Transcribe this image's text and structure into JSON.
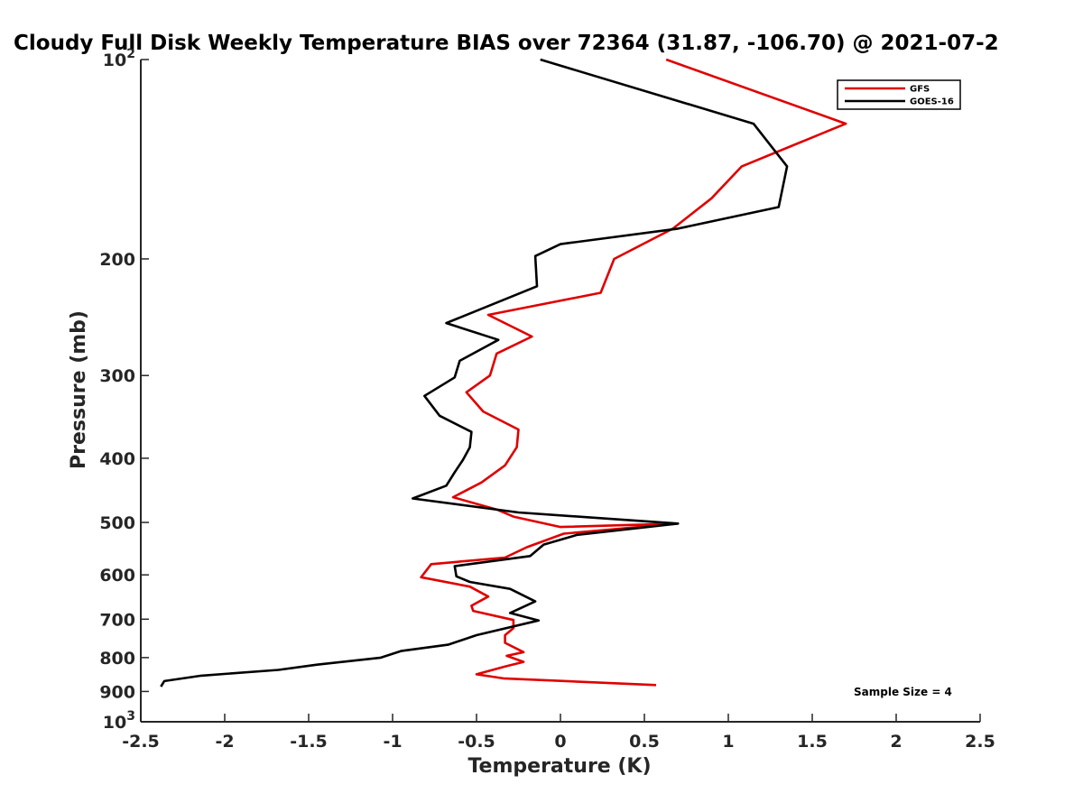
{
  "chart_data": {
    "type": "line",
    "title": "Cloudy Full Disk Weekly Temperature BIAS over 72364 (31.87, -106.70) @ 2021-07-2",
    "xlabel": "Temperature (K)",
    "ylabel": "Pressure (mb)",
    "xlim": [
      -2.5,
      2.5
    ],
    "ylim": [
      100,
      1000
    ],
    "yscale": "log",
    "y_reversed": true,
    "x_ticks": [
      "-2.5",
      "-2",
      "-1.5",
      "-1",
      "-0.5",
      "0",
      "0.5",
      "1",
      "1.5",
      "2",
      "2.5"
    ],
    "y_tick_values": [
      100,
      200,
      300,
      400,
      500,
      600,
      700,
      800,
      900,
      1000
    ],
    "y_ticks": [
      {
        "base": "10",
        "exp": "2"
      },
      {
        "text": "200"
      },
      {
        "text": "300"
      },
      {
        "text": "400"
      },
      {
        "text": "500"
      },
      {
        "text": "600"
      },
      {
        "text": "700"
      },
      {
        "text": "800"
      },
      {
        "text": "900"
      },
      {
        "base": "10",
        "exp": "3"
      }
    ],
    "grid": false,
    "legend_position": "top-right",
    "annotation": "Sample Size = 4",
    "series": [
      {
        "name": "GFS",
        "color": "#e00000",
        "points": [
          [
            0.63,
            100
          ],
          [
            1.7,
            125
          ],
          [
            1.08,
            145
          ],
          [
            0.9,
            162
          ],
          [
            0.67,
            180
          ],
          [
            0.32,
            200
          ],
          [
            0.24,
            225
          ],
          [
            -0.43,
            243
          ],
          [
            -0.17,
            262
          ],
          [
            -0.38,
            278
          ],
          [
            -0.42,
            300
          ],
          [
            -0.56,
            318
          ],
          [
            -0.46,
            340
          ],
          [
            -0.25,
            362
          ],
          [
            -0.26,
            385
          ],
          [
            -0.33,
            410
          ],
          [
            -0.47,
            435
          ],
          [
            -0.64,
            458
          ],
          [
            -0.38,
            478
          ],
          [
            -0.28,
            490
          ],
          [
            0.0,
            508
          ],
          [
            0.7,
            502
          ],
          [
            0.02,
            520
          ],
          [
            -0.2,
            545
          ],
          [
            -0.33,
            565
          ],
          [
            -0.77,
            578
          ],
          [
            -0.83,
            605
          ],
          [
            -0.54,
            625
          ],
          [
            -0.43,
            647
          ],
          [
            -0.53,
            668
          ],
          [
            -0.52,
            680
          ],
          [
            -0.28,
            702
          ],
          [
            -0.28,
            722
          ],
          [
            -0.33,
            740
          ],
          [
            -0.33,
            760
          ],
          [
            -0.22,
            785
          ],
          [
            -0.32,
            795
          ],
          [
            -0.22,
            812
          ],
          [
            -0.33,
            825
          ],
          [
            -0.5,
            848
          ],
          [
            -0.34,
            860
          ],
          [
            0.57,
            880
          ]
        ]
      },
      {
        "name": "GOES-16",
        "color": "#000000",
        "points": [
          [
            -0.12,
            100
          ],
          [
            1.15,
            125
          ],
          [
            1.35,
            145
          ],
          [
            1.3,
            167
          ],
          [
            0.7,
            180
          ],
          [
            0.0,
            190
          ],
          [
            -0.15,
            198
          ],
          [
            -0.14,
            220
          ],
          [
            -0.68,
            250
          ],
          [
            -0.37,
            265
          ],
          [
            -0.6,
            285
          ],
          [
            -0.63,
            302
          ],
          [
            -0.81,
            322
          ],
          [
            -0.72,
            345
          ],
          [
            -0.53,
            365
          ],
          [
            -0.54,
            385
          ],
          [
            -0.58,
            402
          ],
          [
            -0.63,
            420
          ],
          [
            -0.68,
            440
          ],
          [
            -0.88,
            460
          ],
          [
            -0.25,
            483
          ],
          [
            0.7,
            502
          ],
          [
            0.1,
            522
          ],
          [
            -0.1,
            540
          ],
          [
            -0.18,
            562
          ],
          [
            -0.63,
            582
          ],
          [
            -0.62,
            603
          ],
          [
            -0.54,
            615
          ],
          [
            -0.3,
            630
          ],
          [
            -0.15,
            658
          ],
          [
            -0.3,
            685
          ],
          [
            -0.13,
            703
          ],
          [
            -0.5,
            740
          ],
          [
            -0.67,
            765
          ],
          [
            -0.95,
            782
          ],
          [
            -1.07,
            800
          ],
          [
            -1.45,
            820
          ],
          [
            -1.68,
            835
          ],
          [
            -2.14,
            852
          ],
          [
            -2.36,
            868
          ],
          [
            -2.38,
            885
          ]
        ]
      }
    ]
  }
}
